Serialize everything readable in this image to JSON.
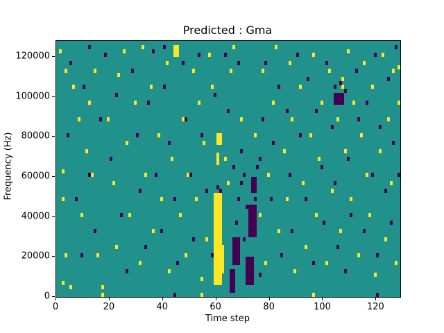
{
  "figure": {
    "title": "Predicted : Gma"
  },
  "chart_data": {
    "type": "heatmap",
    "title": "Predicted : Gma",
    "xlabel": "Time step",
    "ylabel": "Frequency (Hz)",
    "x_range": [
      0,
      129
    ],
    "y_range": [
      0,
      128000
    ],
    "x_ticks": [
      0,
      20,
      40,
      60,
      80,
      100,
      120
    ],
    "y_ticks": [
      0,
      20000,
      40000,
      60000,
      80000,
      100000,
      120000
    ],
    "grid_cols": 129,
    "grid_rows": 64,
    "freq_per_row": 2000,
    "legend": "none",
    "colors": {
      "background": "#21918c",
      "high": "#fde725",
      "low": "#440154"
    },
    "cells": {
      "yellow": [
        [
          1,
          61
        ],
        [
          3,
          56
        ],
        [
          6,
          52
        ],
        [
          8,
          44
        ],
        [
          2,
          31
        ],
        [
          2,
          24
        ],
        [
          3,
          10
        ],
        [
          2,
          3
        ],
        [
          5,
          2
        ],
        [
          9,
          20
        ],
        [
          11,
          36
        ],
        [
          12,
          48
        ],
        [
          14,
          56
        ],
        [
          13,
          30
        ],
        [
          15,
          10
        ],
        [
          17,
          0
        ],
        [
          17,
          2
        ],
        [
          19,
          44
        ],
        [
          21,
          28
        ],
        [
          22,
          12
        ],
        [
          23,
          55
        ],
        [
          25,
          61
        ],
        [
          26,
          38
        ],
        [
          27,
          20
        ],
        [
          29,
          48
        ],
        [
          31,
          8
        ],
        [
          32,
          62
        ],
        [
          33,
          30
        ],
        [
          35,
          52
        ],
        [
          36,
          16
        ],
        [
          38,
          40
        ],
        [
          39,
          24
        ],
        [
          41,
          58
        ],
        [
          42,
          6
        ],
        [
          43,
          34
        ],
        [
          44,
          62
        ],
        [
          45,
          61
        ],
        [
          46,
          20
        ],
        [
          47,
          44
        ],
        [
          48,
          10
        ],
        [
          49,
          30
        ],
        [
          51,
          56
        ],
        [
          52,
          24
        ],
        [
          53,
          48
        ],
        [
          54,
          0
        ],
        [
          54,
          4
        ],
        [
          55,
          38
        ],
        [
          56,
          14
        ],
        [
          57,
          60
        ],
        [
          58,
          52
        ],
        [
          63,
          34
        ],
        [
          64,
          28
        ],
        [
          65,
          56
        ],
        [
          66,
          62
        ],
        [
          67,
          10
        ],
        [
          69,
          44
        ],
        [
          74,
          40
        ],
        [
          76,
          20
        ],
        [
          77,
          56
        ],
        [
          78,
          8
        ],
        [
          79,
          30
        ],
        [
          81,
          48
        ],
        [
          82,
          62
        ],
        [
          83,
          16
        ],
        [
          85,
          36
        ],
        [
          86,
          24
        ],
        [
          87,
          58
        ],
        [
          88,
          44
        ],
        [
          89,
          6
        ],
        [
          91,
          52
        ],
        [
          92,
          28
        ],
        [
          93,
          12
        ],
        [
          95,
          40
        ],
        [
          96,
          0
        ],
        [
          96,
          60
        ],
        [
          97,
          20
        ],
        [
          98,
          34
        ],
        [
          99,
          48
        ],
        [
          101,
          8
        ],
        [
          102,
          56
        ],
        [
          103,
          26
        ],
        [
          105,
          44
        ],
        [
          105,
          50
        ],
        [
          106,
          16
        ],
        [
          107,
          52
        ],
        [
          107,
          54
        ],
        [
          108,
          36
        ],
        [
          109,
          61
        ],
        [
          110,
          24
        ],
        [
          111,
          48
        ],
        [
          113,
          10
        ],
        [
          114,
          40
        ],
        [
          115,
          58
        ],
        [
          116,
          30
        ],
        [
          117,
          20
        ],
        [
          118,
          52
        ],
        [
          119,
          5
        ],
        [
          121,
          36
        ],
        [
          122,
          60
        ],
        [
          123,
          14
        ],
        [
          124,
          44
        ],
        [
          125,
          28
        ],
        [
          126,
          56
        ],
        [
          127,
          8
        ],
        [
          128,
          48
        ],
        [
          128,
          57
        ]
      ],
      "purple": [
        [
          4,
          40
        ],
        [
          5,
          58
        ],
        [
          7,
          24
        ],
        [
          9,
          10
        ],
        [
          10,
          52
        ],
        [
          12,
          30
        ],
        [
          12,
          62
        ],
        [
          14,
          16
        ],
        [
          16,
          44
        ],
        [
          18,
          60
        ],
        [
          20,
          34
        ],
        [
          22,
          50
        ],
        [
          24,
          20
        ],
        [
          26,
          6
        ],
        [
          28,
          56
        ],
        [
          30,
          40
        ],
        [
          31,
          26
        ],
        [
          33,
          12
        ],
        [
          34,
          48
        ],
        [
          36,
          61
        ],
        [
          37,
          30
        ],
        [
          39,
          16
        ],
        [
          40,
          52
        ],
        [
          40,
          62
        ],
        [
          42,
          38
        ],
        [
          44,
          0
        ],
        [
          44,
          24
        ],
        [
          45,
          8
        ],
        [
          47,
          58
        ],
        [
          48,
          44
        ],
        [
          50,
          30
        ],
        [
          51,
          14
        ],
        [
          53,
          60
        ],
        [
          54,
          40
        ],
        [
          56,
          26
        ],
        [
          58,
          10
        ],
        [
          59,
          50
        ],
        [
          60,
          27
        ],
        [
          61,
          26
        ],
        [
          63,
          60
        ],
        [
          64,
          46
        ],
        [
          66,
          32
        ],
        [
          67,
          18
        ],
        [
          68,
          58
        ],
        [
          69,
          36
        ],
        [
          69,
          28
        ],
        [
          68,
          24
        ],
        [
          70,
          30
        ],
        [
          70,
          14
        ],
        [
          71,
          22
        ],
        [
          73,
          20
        ],
        [
          74,
          24
        ],
        [
          75,
          32
        ],
        [
          76,
          34
        ],
        [
          76,
          5
        ],
        [
          77,
          44
        ],
        [
          78,
          58
        ],
        [
          80,
          24
        ],
        [
          81,
          38
        ],
        [
          83,
          52
        ],
        [
          84,
          10
        ],
        [
          86,
          46
        ],
        [
          87,
          30
        ],
        [
          88,
          16
        ],
        [
          90,
          60
        ],
        [
          91,
          40
        ],
        [
          93,
          24
        ],
        [
          94,
          54
        ],
        [
          96,
          8
        ],
        [
          97,
          46
        ],
        [
          99,
          32
        ],
        [
          100,
          18
        ],
        [
          101,
          58
        ],
        [
          103,
          42
        ],
        [
          104,
          28
        ],
        [
          104,
          52
        ],
        [
          105,
          12
        ],
        [
          106,
          50
        ],
        [
          106,
          53
        ],
        [
          108,
          6
        ],
        [
          108,
          51
        ],
        [
          109,
          34
        ],
        [
          110,
          20
        ],
        [
          112,
          56
        ],
        [
          113,
          44
        ],
        [
          115,
          16
        ],
        [
          116,
          48
        ],
        [
          118,
          30
        ],
        [
          119,
          60
        ],
        [
          120,
          0
        ],
        [
          120,
          10
        ],
        [
          121,
          42
        ],
        [
          123,
          26
        ],
        [
          124,
          54
        ],
        [
          125,
          18
        ],
        [
          126,
          38
        ],
        [
          127,
          62
        ],
        [
          128,
          30
        ]
      ]
    },
    "runs": {
      "yellow": [
        [
          59,
          61,
          3,
          25
        ],
        [
          60,
          62,
          6,
          12
        ],
        [
          60,
          60,
          33,
          35
        ],
        [
          60,
          61,
          38,
          40
        ],
        [
          44,
          45,
          60,
          62
        ]
      ],
      "purple": [
        [
          65,
          66,
          1,
          6
        ],
        [
          66,
          68,
          8,
          14
        ],
        [
          71,
          73,
          3,
          9
        ],
        [
          72,
          74,
          15,
          22
        ],
        [
          73,
          74,
          26,
          29
        ],
        [
          104,
          107,
          48,
          50
        ]
      ]
    }
  }
}
